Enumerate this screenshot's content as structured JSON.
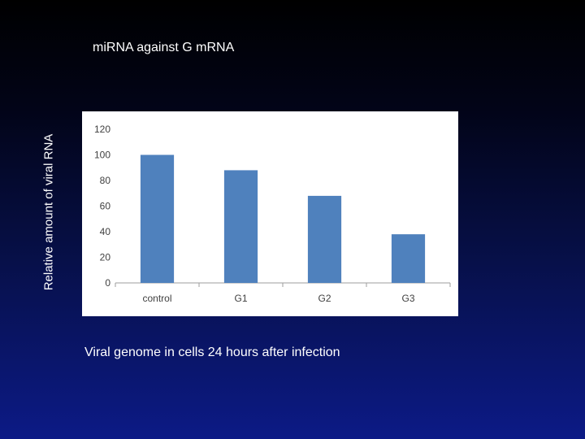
{
  "slide": {
    "title": "miRNA against G mRNA",
    "ylabel": "Relative amount of viral RNA",
    "caption": "Viral genome in cells 24 hours after infection"
  },
  "colors": {
    "bar": "#4f81bd",
    "axis": "#9e9e9e",
    "tick_text": "#404040",
    "panel": "#ffffff"
  },
  "chart_data": {
    "type": "bar",
    "categories": [
      "control",
      "G1",
      "G2",
      "G3"
    ],
    "values": [
      100,
      88,
      68,
      38
    ],
    "title": "",
    "xlabel": "",
    "ylabel": "",
    "ylim": [
      0,
      120
    ],
    "yticks": [
      0,
      20,
      40,
      60,
      80,
      100,
      120
    ],
    "grid": false,
    "legend": "none"
  }
}
